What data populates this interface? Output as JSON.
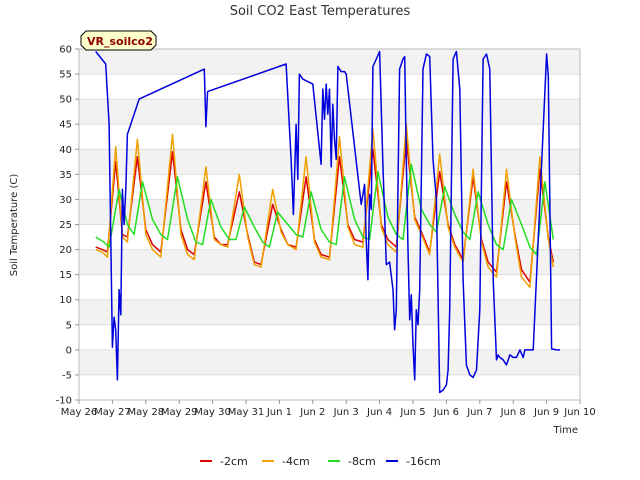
{
  "chart_data": {
    "type": "line",
    "title": "Soil CO2 East Temperatures",
    "xlabel": "Time",
    "ylabel": "Soil Temperature (C)",
    "annotation": "VR_soilco2",
    "ylim": [
      -10,
      60
    ],
    "xlim": [
      0,
      15
    ],
    "yticks": [
      -10,
      -5,
      0,
      5,
      10,
      15,
      20,
      25,
      30,
      35,
      40,
      45,
      50,
      55,
      60
    ],
    "xticks": [
      {
        "x": 0,
        "label": "May 26"
      },
      {
        "x": 1,
        "label": "May 27"
      },
      {
        "x": 2,
        "label": "May 28"
      },
      {
        "x": 3,
        "label": "May 29"
      },
      {
        "x": 4,
        "label": "May 30"
      },
      {
        "x": 5,
        "label": "May 31"
      },
      {
        "x": 6,
        "label": "Jun 1"
      },
      {
        "x": 7,
        "label": "Jun 2"
      },
      {
        "x": 8,
        "label": "Jun 3"
      },
      {
        "x": 9,
        "label": "Jun 4"
      },
      {
        "x": 10,
        "label": "Jun 5"
      },
      {
        "x": 11,
        "label": "Jun 6"
      },
      {
        "x": 12,
        "label": "Jun 7"
      },
      {
        "x": 13,
        "label": "Jun 8"
      },
      {
        "x": 14,
        "label": "Jun 9"
      },
      {
        "x": 15,
        "label": "Jun 10"
      }
    ],
    "grid": "horizontal bands",
    "legend_position": "bottom",
    "series": [
      {
        "name": "-2cm",
        "color": "#dd0000",
        "x": [
          0.5,
          0.7,
          0.85,
          1.1,
          1.3,
          1.45,
          1.75,
          2.0,
          2.2,
          2.45,
          2.8,
          3.05,
          3.25,
          3.45,
          3.8,
          4.05,
          4.25,
          4.45,
          4.8,
          5.05,
          5.25,
          5.45,
          5.8,
          6.05,
          6.25,
          6.5,
          6.8,
          7.05,
          7.25,
          7.5,
          7.8,
          8.05,
          8.25,
          8.5,
          8.8,
          9.05,
          9.25,
          9.5,
          9.8,
          10.05,
          10.25,
          10.5,
          10.8,
          11.05,
          11.25,
          11.5,
          11.8,
          12.05,
          12.25,
          12.5,
          12.8,
          13.05,
          13.25,
          13.5,
          13.8,
          14.05,
          14.2
        ],
        "y": [
          20.5,
          20,
          19.5,
          37.5,
          23,
          22.5,
          38.5,
          24,
          21,
          19.5,
          39.5,
          24,
          20,
          19,
          33.5,
          22.5,
          21,
          21,
          31.5,
          23,
          17.5,
          17,
          29,
          24,
          21,
          20.5,
          34.5,
          22,
          19,
          18.5,
          38.5,
          25,
          22,
          21.5,
          40,
          25,
          22,
          20.5,
          42,
          26.5,
          23.5,
          19.5,
          35.5,
          25,
          21,
          18,
          34.5,
          22,
          17.5,
          15.5,
          33.5,
          23,
          16,
          13.5,
          36,
          22.5,
          17.5
        ]
      },
      {
        "name": "-4cm",
        "color": "#f0a000",
        "x": [
          0.5,
          0.7,
          0.85,
          1.1,
          1.3,
          1.45,
          1.75,
          2.0,
          2.2,
          2.45,
          2.8,
          3.05,
          3.25,
          3.45,
          3.8,
          4.05,
          4.25,
          4.45,
          4.8,
          5.05,
          5.25,
          5.45,
          5.8,
          6.05,
          6.25,
          6.5,
          6.8,
          7.05,
          7.25,
          7.5,
          7.8,
          8.05,
          8.25,
          8.5,
          8.8,
          9.05,
          9.25,
          9.5,
          9.8,
          10.05,
          10.25,
          10.5,
          10.8,
          11.05,
          11.25,
          11.5,
          11.8,
          12.05,
          12.25,
          12.5,
          12.8,
          13.05,
          13.25,
          13.5,
          13.8,
          14.05,
          14.2
        ],
        "y": [
          20,
          19.5,
          18.5,
          40.5,
          22.5,
          21.5,
          42,
          23,
          20,
          18.5,
          43,
          23,
          19,
          18,
          36.5,
          22,
          21,
          20.5,
          35,
          22.5,
          17,
          16.5,
          32,
          23.5,
          21,
          20,
          38.5,
          21.5,
          18.5,
          18,
          42.5,
          24.5,
          21,
          20.5,
          44,
          24.5,
          21,
          19.5,
          45,
          26,
          23,
          19,
          39,
          24.5,
          20.5,
          17.5,
          36,
          21.5,
          16.5,
          14.5,
          36,
          22.5,
          14.5,
          12.5,
          38.5,
          22,
          16.5
        ]
      },
      {
        "name": "-8cm",
        "color": "#22dd22",
        "x": [
          0.5,
          0.75,
          0.9,
          1.2,
          1.45,
          1.65,
          1.9,
          2.2,
          2.45,
          2.65,
          2.95,
          3.25,
          3.5,
          3.7,
          3.95,
          4.25,
          4.5,
          4.7,
          4.95,
          5.25,
          5.5,
          5.7,
          5.95,
          6.25,
          6.5,
          6.7,
          6.95,
          7.25,
          7.5,
          7.7,
          7.95,
          8.25,
          8.5,
          8.7,
          8.95,
          9.25,
          9.5,
          9.7,
          9.95,
          10.25,
          10.5,
          10.7,
          10.95,
          11.25,
          11.5,
          11.7,
          11.95,
          12.25,
          12.5,
          12.7,
          12.95,
          13.25,
          13.5,
          13.7,
          13.95,
          14.2
        ],
        "y": [
          22.5,
          21.5,
          20.5,
          32,
          25,
          23,
          33.5,
          26,
          23,
          22,
          34.5,
          26,
          21.5,
          21,
          30,
          24.5,
          22,
          22,
          28.5,
          24.5,
          21.5,
          20.5,
          27.5,
          25,
          23,
          22.5,
          31.5,
          24,
          21.5,
          21,
          34.5,
          26,
          22.5,
          22,
          35.5,
          26.5,
          23,
          22,
          37,
          28,
          25,
          23.5,
          32.5,
          27,
          23.5,
          22,
          31.5,
          25,
          21,
          20,
          30,
          25,
          20.5,
          19,
          33.5,
          22
        ]
      },
      {
        "name": "-16cm",
        "color": "#0000dd",
        "x": [
          0.5,
          0.8,
          0.9,
          1.0,
          1.05,
          1.1,
          1.15,
          1.2,
          1.25,
          1.3,
          1.35,
          1.4,
          1.45,
          1.5,
          1.55,
          1.6,
          1.65,
          1.7,
          1.75,
          1.8,
          3.75,
          3.8,
          3.85,
          6.2,
          6.35,
          6.42,
          6.5,
          6.55,
          6.6,
          6.65,
          6.7,
          7.0,
          7.25,
          7.3,
          7.35,
          7.4,
          7.45,
          7.5,
          7.55,
          7.6,
          7.65,
          7.7,
          7.75,
          7.8,
          7.85,
          7.95,
          8.0,
          8.45,
          8.55,
          8.6,
          8.65,
          8.7,
          8.75,
          8.8,
          8.9,
          9.0,
          9.1,
          9.2,
          9.3,
          9.4,
          9.45,
          9.5,
          9.6,
          9.7,
          9.75,
          9.8,
          9.85,
          9.9,
          9.95,
          10.0,
          10.05,
          10.1,
          10.15,
          10.2,
          10.3,
          10.4,
          10.5,
          10.6,
          10.7,
          10.8,
          10.9,
          11.0,
          11.05,
          11.1,
          11.2,
          11.3,
          11.4,
          11.5,
          11.6,
          11.7,
          11.8,
          11.9,
          12.0,
          12.1,
          12.2,
          12.3,
          12.4,
          12.5,
          12.55,
          12.6,
          12.7,
          12.8,
          12.9,
          13.0,
          13.1,
          13.2,
          13.3,
          13.35,
          13.4,
          13.5,
          13.6,
          14.0,
          14.05,
          14.15,
          14.3,
          14.4
        ],
        "y": [
          59.5,
          57,
          45,
          0.5,
          6.5,
          4,
          -6,
          12,
          7,
          32,
          25,
          32,
          43,
          44,
          45,
          46,
          47,
          48,
          49,
          50,
          56,
          44.5,
          51.5,
          57,
          38,
          27,
          45,
          34,
          55,
          54.5,
          54,
          53,
          37,
          52,
          46,
          53,
          47,
          52,
          36.5,
          49,
          42,
          38,
          56.5,
          56,
          55.5,
          55.5,
          55,
          29,
          33,
          22,
          14,
          31,
          28,
          56.5,
          58,
          59.5,
          37,
          17,
          17.5,
          12,
          4,
          8,
          56,
          58,
          58.5,
          38,
          20,
          6,
          11,
          1,
          -6,
          8,
          5,
          12,
          56,
          59,
          58.5,
          38,
          30,
          -8.5,
          -8,
          -7,
          -4,
          8,
          58,
          59.5,
          52,
          14,
          -3,
          -5,
          -5.5,
          -4,
          8,
          58,
          59,
          56,
          14,
          -2,
          -1,
          -1.5,
          -2,
          -3,
          -1,
          -1.5,
          -1.5,
          0,
          -1.5,
          0,
          0,
          0,
          0,
          59,
          54.5,
          0.2,
          0,
          0
        ]
      }
    ]
  }
}
